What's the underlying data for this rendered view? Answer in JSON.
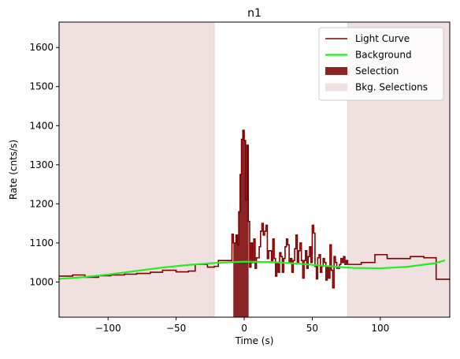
{
  "chart_data": {
    "type": "line",
    "title": "n1",
    "xlabel": "Time (s)",
    "ylabel": "Rate (cnts/s)",
    "xlim": [
      -136,
      151
    ],
    "ylim": [
      910,
      1665
    ],
    "x_ticks": [
      -100,
      -50,
      0,
      50,
      100
    ],
    "x_tick_labels": [
      "−100",
      "−50",
      "0",
      "50",
      "100"
    ],
    "y_ticks": [
      1000,
      1100,
      1200,
      1300,
      1400,
      1500,
      1600
    ],
    "y_tick_labels": [
      "1000",
      "1100",
      "1200",
      "1300",
      "1400",
      "1500",
      "1600"
    ],
    "legend": {
      "position": "upper right",
      "entries": [
        {
          "label": "Light Curve",
          "kind": "line",
          "color": "#800000"
        },
        {
          "label": "Background",
          "kind": "line",
          "color": "#22ee22"
        },
        {
          "label": "Selection",
          "kind": "patch",
          "color": "#8b2424"
        },
        {
          "label": "Bkg. Selections",
          "kind": "patch",
          "color": "#f0e0e0"
        }
      ]
    },
    "series": [
      {
        "name": "Light Curve",
        "style": "steps-post",
        "color": "#800000",
        "points": [
          [
            -136,
            1015
          ],
          [
            -126,
            1018
          ],
          [
            -117,
            1012
          ],
          [
            -107,
            1016
          ],
          [
            -98,
            1018
          ],
          [
            -88,
            1020
          ],
          [
            -79,
            1022
          ],
          [
            -69,
            1025
          ],
          [
            -60,
            1030
          ],
          [
            -50,
            1026
          ],
          [
            -41,
            1028
          ],
          [
            -36,
            1045
          ],
          [
            -27,
            1038
          ],
          [
            -22,
            1040
          ],
          [
            -19,
            1055
          ],
          [
            -9,
            1122
          ],
          [
            -8,
            1100
          ],
          [
            -6,
            1120
          ],
          [
            -5,
            1095
          ],
          [
            -4,
            1180
          ],
          [
            -3,
            1275
          ],
          [
            -2,
            1365
          ],
          [
            -1,
            1388
          ],
          [
            0,
            1362
          ],
          [
            1,
            1210
          ],
          [
            2,
            1350
          ],
          [
            3,
            1155
          ],
          [
            4,
            1038
          ],
          [
            5,
            1100
          ],
          [
            6,
            1050
          ],
          [
            7,
            1110
          ],
          [
            8,
            1035
          ],
          [
            9,
            1062
          ],
          [
            11,
            1090
          ],
          [
            12,
            1130
          ],
          [
            13,
            1150
          ],
          [
            14,
            1120
          ],
          [
            15,
            1130
          ],
          [
            16,
            1145
          ],
          [
            17,
            1060
          ],
          [
            18,
            1080
          ],
          [
            20,
            1050
          ],
          [
            21,
            1110
          ],
          [
            22,
            1060
          ],
          [
            23,
            1015
          ],
          [
            24,
            1050
          ],
          [
            25,
            1025
          ],
          [
            26,
            1075
          ],
          [
            27,
            1065
          ],
          [
            28,
            1025
          ],
          [
            29,
            1060
          ],
          [
            30,
            1090
          ],
          [
            31,
            1110
          ],
          [
            32,
            1095
          ],
          [
            33,
            1050
          ],
          [
            34,
            1060
          ],
          [
            35,
            1025
          ],
          [
            36,
            1055
          ],
          [
            37,
            1085
          ],
          [
            38,
            1120
          ],
          [
            39,
            1050
          ],
          [
            40,
            1080
          ],
          [
            41,
            1100
          ],
          [
            42,
            1055
          ],
          [
            43,
            1010
          ],
          [
            44,
            1055
          ],
          [
            45,
            1080
          ],
          [
            46,
            1035
          ],
          [
            47,
            1065
          ],
          [
            48,
            1090
          ],
          [
            49,
            1050
          ],
          [
            50,
            1145
          ],
          [
            51,
            1125
          ],
          [
            52,
            1040
          ],
          [
            53,
            1008
          ],
          [
            54,
            1062
          ],
          [
            55,
            1070
          ],
          [
            56,
            1025
          ],
          [
            57,
            1040
          ],
          [
            58,
            1060
          ],
          [
            59,
            1050
          ],
          [
            60,
            1005
          ],
          [
            61,
            1040
          ],
          [
            62,
            1010
          ],
          [
            63,
            1095
          ],
          [
            64,
            1030
          ],
          [
            65,
            985
          ],
          [
            66,
            1065
          ],
          [
            67,
            1050
          ],
          [
            68,
            1035
          ],
          [
            70,
            1045
          ],
          [
            71,
            1060
          ],
          [
            72,
            1050
          ],
          [
            73,
            1065
          ],
          [
            74,
            1045
          ],
          [
            75,
            1055
          ],
          [
            76,
            1045
          ],
          [
            86,
            1050
          ],
          [
            96,
            1070
          ],
          [
            105,
            1060
          ],
          [
            115,
            1060
          ],
          [
            122,
            1065
          ],
          [
            132,
            1062
          ],
          [
            141,
            1007
          ],
          [
            151,
            1007
          ]
        ]
      },
      {
        "name": "Background",
        "style": "smooth",
        "color": "#22ee22",
        "points": [
          [
            -136,
            1008
          ],
          [
            -120,
            1012
          ],
          [
            -100,
            1019
          ],
          [
            -80,
            1028
          ],
          [
            -60,
            1037
          ],
          [
            -40,
            1044
          ],
          [
            -20,
            1049
          ],
          [
            0,
            1052
          ],
          [
            20,
            1051
          ],
          [
            40,
            1047
          ],
          [
            60,
            1041
          ],
          [
            80,
            1036
          ],
          [
            100,
            1035
          ],
          [
            120,
            1039
          ],
          [
            140,
            1048
          ],
          [
            147,
            1055
          ]
        ]
      }
    ],
    "selection": {
      "label": "Selection",
      "x_range": [
        -8,
        3
      ]
    },
    "bkg_selections": {
      "label": "Bkg. Selections",
      "x_ranges": [
        [
          -136,
          -22
        ],
        [
          76,
          151
        ]
      ]
    },
    "grid": false
  }
}
